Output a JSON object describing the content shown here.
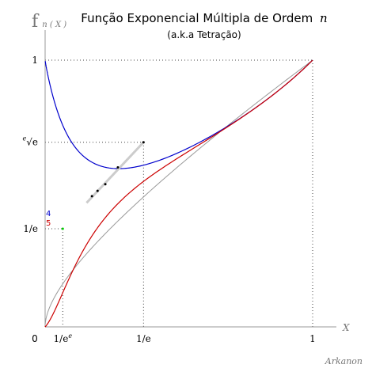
{
  "chart_data": {
    "type": "line",
    "title": "Função Exponencial Múltipla de Ordem",
    "title_var": "n",
    "subtitle": "(a.k.a Tetração)",
    "ylabel_main": "f",
    "ylabel_sub": "n ( X )",
    "xlabel": "X",
    "credit": "Arkanon",
    "xlim": [
      0,
      1
    ],
    "ylim": [
      0,
      1
    ],
    "x_ticks": [
      {
        "value": 0.06599,
        "label": "1/e",
        "sup": "e"
      },
      {
        "value": 0.36788,
        "label": "1/e",
        "sup": ""
      },
      {
        "value": 1.0,
        "label": "1",
        "sup": ""
      }
    ],
    "origin_label": "0",
    "y_ticks": [
      {
        "value": 1.0,
        "label": "1",
        "root_index": ""
      },
      {
        "value": 0.6922,
        "label": "√e",
        "root_index": "e"
      },
      {
        "value": 0.36788,
        "label": "1/e",
        "root_index": ""
      }
    ],
    "series": [
      {
        "name": "4",
        "color": "#0000cc"
      },
      {
        "name": "5",
        "color": "#cc0000"
      }
    ],
    "gray_curve_color": "#999999",
    "guide_segment_color": "#cccccc",
    "marker_point_color": "#00cc00"
  }
}
